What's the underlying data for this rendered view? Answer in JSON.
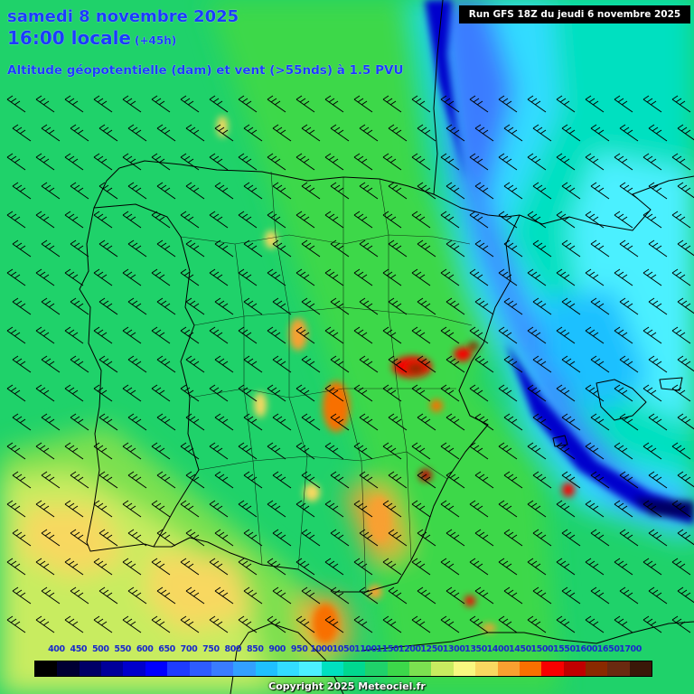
{
  "header": {
    "date": "samedi 8 novembre 2025",
    "time": "16:00 locale",
    "lead": "(+45h)",
    "parameter": "Altitude géopotentielle (dam) et vent (>55nds) à 1.5 PVU"
  },
  "run_info": "Run GFS 18Z du jeudi 6 novembre 2025",
  "legend": {
    "labels": [
      "400",
      "450",
      "500",
      "550",
      "600",
      "650",
      "700",
      "750",
      "800",
      "850",
      "900",
      "950",
      "1000",
      "1050",
      "1100",
      "1150",
      "1200",
      "1250",
      "1300",
      "1350",
      "1400",
      "1450",
      "1500",
      "1550",
      "1600",
      "1650",
      "1700"
    ],
    "colors": [
      "#000000",
      "#000033",
      "#000066",
      "#00009a",
      "#0000cc",
      "#0000ff",
      "#1e3cff",
      "#2e5cff",
      "#3a7cff",
      "#33a0ff",
      "#1fc0ff",
      "#33dcff",
      "#4cf0ff",
      "#00e0c0",
      "#00d890",
      "#1fd26a",
      "#3cd84a",
      "#7ce050",
      "#c8ec60",
      "#f8f880",
      "#f8d860",
      "#f8a030",
      "#f87000",
      "#f80000",
      "#c00000",
      "#8a2a00",
      "#6a2a10",
      "#3a1808"
    ]
  },
  "copyright": "Copyright 2025 Meteociel.fr"
}
